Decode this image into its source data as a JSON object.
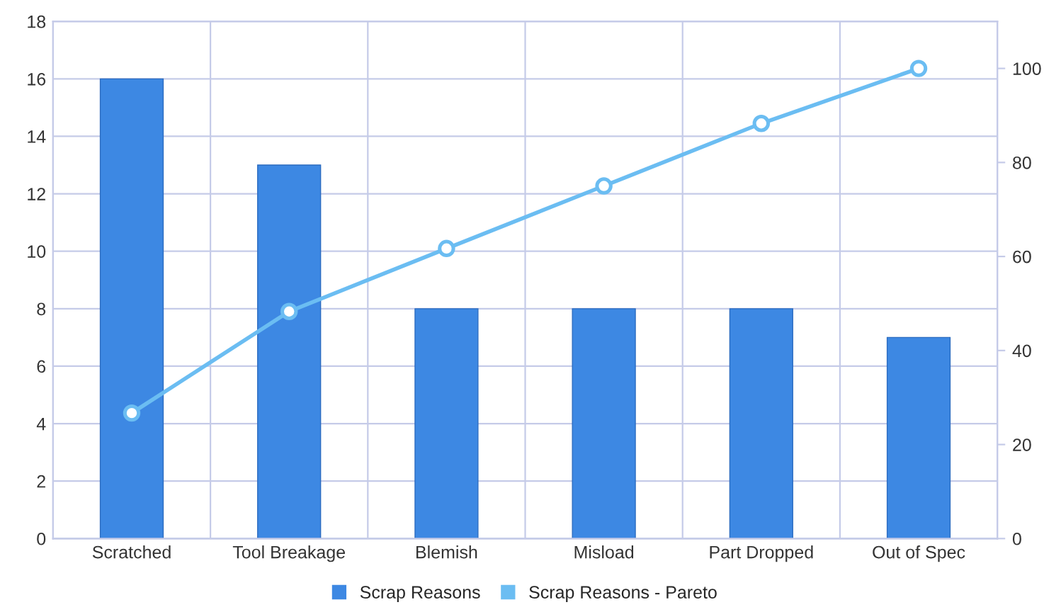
{
  "chart_data": {
    "type": "bar",
    "categories": [
      "Scratched",
      "Tool Breakage",
      "Blemish",
      "Misload",
      "Part Dropped",
      "Out of Spec"
    ],
    "series": [
      {
        "name": "Scrap Reasons",
        "color": "#3d88e3",
        "values": [
          16,
          13,
          8,
          8,
          8,
          7
        ]
      },
      {
        "name": "Scrap Reasons - Pareto",
        "type": "line",
        "axis": "y2",
        "color": "#6bbdf2",
        "marker": "circle",
        "values": [
          26.7,
          48.3,
          61.7,
          75,
          88.3,
          100
        ]
      }
    ],
    "ylim": [
      0,
      18
    ],
    "yticks": [
      0,
      2,
      4,
      6,
      8,
      10,
      12,
      14,
      16,
      18
    ],
    "y2lim": [
      0,
      110
    ],
    "y2ticks": [
      0,
      20,
      40,
      60,
      80,
      100
    ],
    "grid": true,
    "legend": "bottom"
  }
}
